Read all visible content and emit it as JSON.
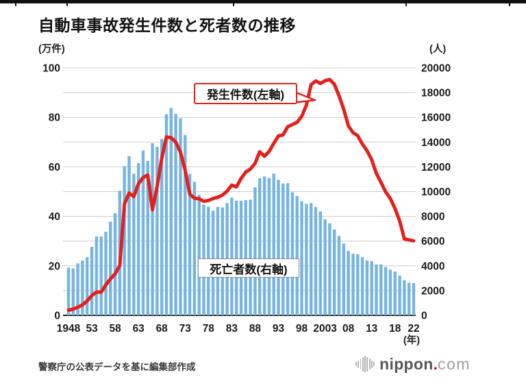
{
  "page": {
    "title": "自動車事故発生件数と死者数の推移",
    "source_note": "警察庁の公表データを基に編集部作成",
    "logo": {
      "name": "nippon",
      "dot": ".",
      "tld": "com",
      "icon": "soundwave-bars-icon"
    }
  },
  "chart_data": {
    "type": "bar",
    "title": "自動車事故発生件数と死者数の推移",
    "grid": true,
    "colors": {
      "bar": "#76b4e1",
      "line": "#e3201b",
      "grid": "#cccccc",
      "axis": "#1a1a1a"
    },
    "left_axis": {
      "unit": "(万件)",
      "min": 0,
      "max": 100,
      "ticks": [
        0,
        20,
        40,
        60,
        80,
        100
      ],
      "grid_step": 10
    },
    "right_axis": {
      "unit": "(人)",
      "min": 0,
      "max": 20000,
      "ticks": [
        0,
        2000,
        4000,
        6000,
        8000,
        10000,
        12000,
        14000,
        16000,
        18000,
        20000
      ],
      "grid_step": 2000
    },
    "x_axis": {
      "unit": "(年)",
      "ticks": [
        {
          "year": 1948,
          "label": "1948"
        },
        {
          "year": 1953,
          "label": "53"
        },
        {
          "year": 1958,
          "label": "58"
        },
        {
          "year": 1963,
          "label": "63"
        },
        {
          "year": 1968,
          "label": "68"
        },
        {
          "year": 1973,
          "label": "73"
        },
        {
          "year": 1978,
          "label": "78"
        },
        {
          "year": 1983,
          "label": "83"
        },
        {
          "year": 1988,
          "label": "88"
        },
        {
          "year": 1993,
          "label": "93"
        },
        {
          "year": 1998,
          "label": "98"
        },
        {
          "year": 2003,
          "label": "2003"
        },
        {
          "year": 2008,
          "label": "08"
        },
        {
          "year": 2013,
          "label": "13"
        },
        {
          "year": 2018,
          "label": "18"
        },
        {
          "year": 2022,
          "label": "22"
        }
      ]
    },
    "years": [
      1948,
      1949,
      1950,
      1951,
      1952,
      1953,
      1954,
      1955,
      1956,
      1957,
      1958,
      1959,
      1960,
      1961,
      1962,
      1963,
      1964,
      1965,
      1966,
      1967,
      1968,
      1969,
      1970,
      1971,
      1972,
      1973,
      1974,
      1975,
      1976,
      1977,
      1978,
      1979,
      1980,
      1981,
      1982,
      1983,
      1984,
      1985,
      1986,
      1987,
      1988,
      1989,
      1990,
      1991,
      1992,
      1993,
      1994,
      1995,
      1996,
      1997,
      1998,
      1999,
      2000,
      2001,
      2002,
      2003,
      2004,
      2005,
      2006,
      2007,
      2008,
      2009,
      2010,
      2011,
      2012,
      2013,
      2014,
      2015,
      2016,
      2017,
      2018,
      2019,
      2020,
      2021,
      2022
    ],
    "series": [
      {
        "name": "死亡者数(右軸)",
        "type": "bar",
        "axis": "right",
        "unit": "人",
        "color": "#76b4e1",
        "values": [
          3848,
          3790,
          4202,
          4429,
          4696,
          5544,
          6374,
          6379,
          6751,
          7575,
          8248,
          10079,
          12055,
          12865,
          11445,
          12301,
          13318,
          12484,
          13904,
          13618,
          14256,
          16257,
          16765,
          16278,
          15918,
          14574,
          11432,
          10792,
          9734,
          8945,
          8783,
          8466,
          8760,
          8719,
          9073,
          9520,
          9262,
          9261,
          9317,
          9347,
          10344,
          11086,
          11227,
          11109,
          11452,
          10945,
          10653,
          10684,
          9943,
          9642,
          9214,
          9012,
          9073,
          8757,
          8396,
          7768,
          7436,
          6937,
          6415,
          5796,
          5209,
          4979,
          4948,
          4691,
          4438,
          4388,
          4113,
          4117,
          3904,
          3694,
          3532,
          3215,
          2839,
          2636,
          2610
        ]
      },
      {
        "name": "発生件数(左軸)",
        "type": "line",
        "axis": "left",
        "unit": "万件",
        "color": "#e3201b",
        "values": [
          2.1,
          2.5,
          3.3,
          4.2,
          5.8,
          8.0,
          9.4,
          9.4,
          12.3,
          14.7,
          16.8,
          20.1,
          45.0,
          49.4,
          48.0,
          53.2,
          55.7,
          56.7,
          42.6,
          52.1,
          63.5,
          72.1,
          71.8,
          70.0,
          65.9,
          58.7,
          49.0,
          47.3,
          47.1,
          46.1,
          46.4,
          47.2,
          47.7,
          48.6,
          50.2,
          52.6,
          51.9,
          55.3,
          57.9,
          59.1,
          61.4,
          66.1,
          64.3,
          66.2,
          69.5,
          72.5,
          72.9,
          76.2,
          77.1,
          78.0,
          80.4,
          85.0,
          93.2,
          94.7,
          93.7,
          94.8,
          95.3,
          93.4,
          88.7,
          83.3,
          76.6,
          73.8,
          72.6,
          69.2,
          66.5,
          62.9,
          57.4,
          53.7,
          49.9,
          47.2,
          43.1,
          38.1,
          30.9,
          30.5,
          30.1
        ]
      }
    ],
    "annotations": {
      "line_callout": "発生件数(左軸)",
      "bar_label": "死亡者数(右軸)"
    }
  }
}
